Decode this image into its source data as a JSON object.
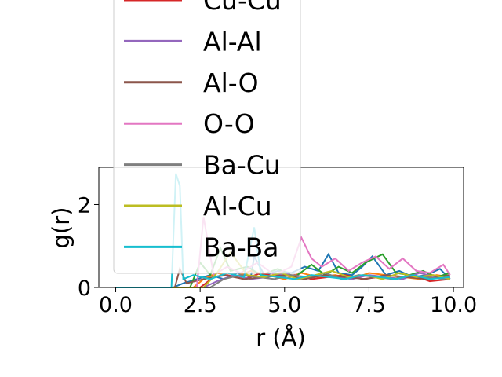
{
  "chart_data": {
    "type": "line",
    "title": "",
    "xlabel": "r (Å)",
    "ylabel": "g(r)",
    "xlim": [
      -0.5,
      10.3
    ],
    "ylim": [
      0,
      2.9
    ],
    "xticks": [
      0.0,
      2.5,
      5.0,
      7.5,
      10.0
    ],
    "xtick_labels": [
      "0.0",
      "2.5",
      "5.0",
      "7.5",
      "10.0"
    ],
    "yticks": [
      0,
      2
    ],
    "ytick_labels": [
      "0",
      "2"
    ],
    "grid": false,
    "legend": "upper-left, overflowing above the axes",
    "series": [
      {
        "name": "",
        "color": "#1f77b4",
        "x": [
          0,
          1.7,
          2.0,
          2.4,
          2.8,
          3.2,
          3.6,
          4.0,
          4.1,
          4.4,
          4.8,
          5.2,
          5.6,
          6.0,
          6.3,
          6.6,
          7.0,
          7.3,
          7.6,
          8.0,
          8.4,
          8.8,
          9.2,
          9.6,
          9.9
        ],
        "y": [
          0,
          0,
          0.1,
          0.2,
          0.3,
          0.2,
          0.35,
          0.25,
          0.75,
          0.3,
          0.4,
          0.35,
          0.5,
          0.4,
          0.8,
          0.35,
          0.3,
          0.5,
          0.75,
          0.3,
          0.4,
          0.25,
          0.3,
          0.45,
          0.2
        ]
      },
      {
        "name": "",
        "color": "#ff7f0e",
        "x": [
          0,
          2.3,
          2.6,
          3.0,
          3.5,
          4.0,
          4.5,
          5.0,
          5.5,
          6.0,
          6.5,
          7.0,
          7.5,
          8.0,
          8.5,
          9.0,
          9.5,
          9.9
        ],
        "y": [
          0,
          0,
          0.2,
          0.35,
          0.25,
          0.4,
          0.3,
          0.2,
          0.35,
          0.25,
          0.3,
          0.2,
          0.35,
          0.3,
          0.25,
          0.2,
          0.3,
          0.25
        ]
      },
      {
        "name": "",
        "color": "#2ca02c",
        "x": [
          0,
          2.2,
          2.5,
          2.8,
          3.1,
          3.4,
          3.9,
          4.3,
          4.8,
          5.3,
          5.8,
          6.2,
          6.6,
          7.0,
          7.4,
          7.9,
          8.3,
          8.7,
          9.1,
          9.5,
          9.9
        ],
        "y": [
          0,
          0,
          0.6,
          0.3,
          0.95,
          0.4,
          0.5,
          0.3,
          0.45,
          0.25,
          0.55,
          0.3,
          0.5,
          0.35,
          0.6,
          0.8,
          0.35,
          0.3,
          0.4,
          0.25,
          0.35
        ]
      },
      {
        "name": "Cu-Cu",
        "color": "#d62728",
        "x": [
          0,
          2.5,
          2.9,
          3.3,
          3.8,
          4.3,
          4.8,
          5.3,
          5.8,
          6.3,
          6.8,
          7.3,
          7.8,
          8.3,
          8.8,
          9.3,
          9.9
        ],
        "y": [
          0,
          0,
          0.25,
          0.3,
          0.2,
          0.35,
          0.25,
          0.3,
          0.2,
          0.25,
          0.3,
          0.2,
          0.25,
          0.2,
          0.3,
          0.15,
          0.2
        ]
      },
      {
        "name": "Al-Al",
        "color": "#9467bd",
        "x": [
          0,
          2.6,
          3.0,
          3.5,
          4.0,
          4.5,
          5.0,
          5.5,
          6.0,
          6.5,
          7.0,
          7.5,
          8.0,
          8.5,
          9.0,
          9.5,
          9.9
        ],
        "y": [
          0,
          0,
          0.15,
          0.3,
          0.2,
          0.25,
          0.35,
          0.2,
          0.3,
          0.25,
          0.2,
          0.3,
          0.25,
          0.2,
          0.35,
          0.25,
          0.2
        ]
      },
      {
        "name": "Al-O",
        "color": "#8c564b",
        "x": [
          0,
          1.75,
          1.9,
          2.1,
          2.6,
          3.2,
          3.8,
          4.4,
          5.0,
          5.6,
          6.2,
          6.8,
          7.4,
          8.0,
          8.6,
          9.2,
          9.9
        ],
        "y": [
          0,
          0,
          0.45,
          0.1,
          0.2,
          0.3,
          0.2,
          0.25,
          0.3,
          0.2,
          0.3,
          0.25,
          0.2,
          0.3,
          0.25,
          0.2,
          0.3
        ]
      },
      {
        "name": "O-O",
        "color": "#e377c2",
        "x": [
          0,
          2.4,
          2.6,
          2.9,
          3.3,
          3.7,
          4.2,
          4.7,
          5.2,
          5.5,
          5.8,
          6.1,
          6.5,
          6.9,
          7.3,
          7.7,
          8.1,
          8.5,
          8.9,
          9.3,
          9.7,
          9.9
        ],
        "y": [
          0,
          0,
          1.7,
          0.3,
          0.5,
          0.35,
          0.6,
          0.3,
          0.5,
          1.2,
          0.7,
          0.5,
          0.7,
          0.4,
          0.6,
          0.75,
          0.45,
          0.7,
          0.4,
          0.35,
          0.55,
          0.3
        ]
      },
      {
        "name": "Ba-Cu",
        "color": "#7f7f7f",
        "x": [
          0,
          2.8,
          3.2,
          3.7,
          4.2,
          4.7,
          5.2,
          5.7,
          6.2,
          6.7,
          7.2,
          7.7,
          8.2,
          8.7,
          9.2,
          9.7,
          9.9
        ],
        "y": [
          0,
          0,
          0.2,
          0.3,
          0.25,
          0.2,
          0.3,
          0.25,
          0.35,
          0.2,
          0.3,
          0.25,
          0.2,
          0.3,
          0.25,
          0.2,
          0.25
        ]
      },
      {
        "name": "Al-Cu",
        "color": "#bcbd22",
        "x": [
          0,
          2.6,
          3.0,
          3.4,
          3.9,
          4.4,
          4.9,
          5.4,
          5.9,
          6.4,
          6.9,
          7.4,
          7.9,
          8.4,
          8.9,
          9.4,
          9.9
        ],
        "y": [
          0,
          0,
          0.35,
          0.85,
          0.3,
          0.25,
          0.35,
          0.2,
          0.3,
          0.4,
          0.25,
          0.3,
          0.2,
          0.35,
          0.25,
          0.3,
          0.2
        ]
      },
      {
        "name": "Ba-Ba",
        "color": "#17becf",
        "x": [
          0,
          1.65,
          1.78,
          1.9,
          2.0,
          2.3,
          2.8,
          3.3,
          3.8,
          4.1,
          4.3,
          4.8,
          5.3,
          5.8,
          6.3,
          6.8,
          7.3,
          7.8,
          8.3,
          8.8,
          9.3,
          9.9
        ],
        "y": [
          0,
          0,
          2.75,
          2.45,
          0.2,
          0.3,
          0.2,
          0.35,
          0.25,
          1.45,
          0.3,
          0.25,
          0.2,
          0.3,
          0.25,
          0.2,
          0.3,
          0.25,
          0.2,
          0.3,
          0.2,
          0.25
        ]
      }
    ]
  }
}
